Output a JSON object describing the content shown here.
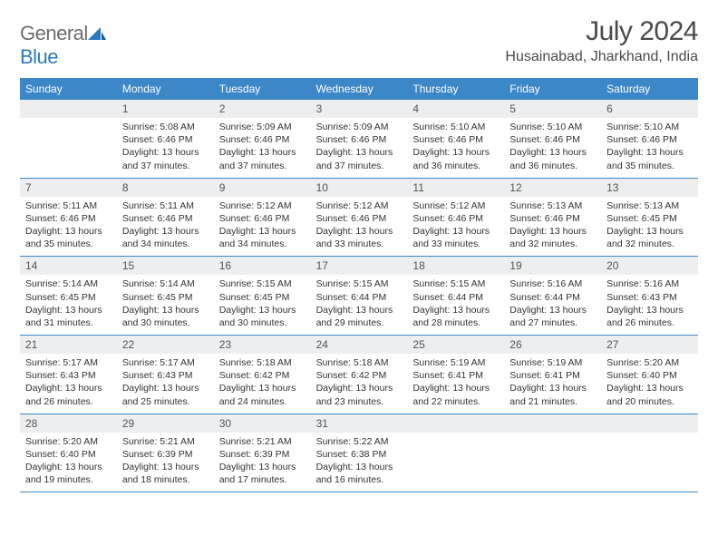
{
  "brand": {
    "name_a": "General",
    "name_b": "Blue"
  },
  "title": "July 2024",
  "location": "Husainabad, Jharkhand, India",
  "colors": {
    "header_bg": "#3b87c8",
    "header_fg": "#ffffff",
    "daynum_bg": "#eceeef",
    "text": "#333333",
    "border": "#3b87c8"
  },
  "day_headers": [
    "Sunday",
    "Monday",
    "Tuesday",
    "Wednesday",
    "Thursday",
    "Friday",
    "Saturday"
  ],
  "first_weekday": 1,
  "days": [
    {
      "n": 1,
      "sr": "5:08 AM",
      "ss": "6:46 PM",
      "dl": "13 hours and 37 minutes."
    },
    {
      "n": 2,
      "sr": "5:09 AM",
      "ss": "6:46 PM",
      "dl": "13 hours and 37 minutes."
    },
    {
      "n": 3,
      "sr": "5:09 AM",
      "ss": "6:46 PM",
      "dl": "13 hours and 37 minutes."
    },
    {
      "n": 4,
      "sr": "5:10 AM",
      "ss": "6:46 PM",
      "dl": "13 hours and 36 minutes."
    },
    {
      "n": 5,
      "sr": "5:10 AM",
      "ss": "6:46 PM",
      "dl": "13 hours and 36 minutes."
    },
    {
      "n": 6,
      "sr": "5:10 AM",
      "ss": "6:46 PM",
      "dl": "13 hours and 35 minutes."
    },
    {
      "n": 7,
      "sr": "5:11 AM",
      "ss": "6:46 PM",
      "dl": "13 hours and 35 minutes."
    },
    {
      "n": 8,
      "sr": "5:11 AM",
      "ss": "6:46 PM",
      "dl": "13 hours and 34 minutes."
    },
    {
      "n": 9,
      "sr": "5:12 AM",
      "ss": "6:46 PM",
      "dl": "13 hours and 34 minutes."
    },
    {
      "n": 10,
      "sr": "5:12 AM",
      "ss": "6:46 PM",
      "dl": "13 hours and 33 minutes."
    },
    {
      "n": 11,
      "sr": "5:12 AM",
      "ss": "6:46 PM",
      "dl": "13 hours and 33 minutes."
    },
    {
      "n": 12,
      "sr": "5:13 AM",
      "ss": "6:46 PM",
      "dl": "13 hours and 32 minutes."
    },
    {
      "n": 13,
      "sr": "5:13 AM",
      "ss": "6:45 PM",
      "dl": "13 hours and 32 minutes."
    },
    {
      "n": 14,
      "sr": "5:14 AM",
      "ss": "6:45 PM",
      "dl": "13 hours and 31 minutes."
    },
    {
      "n": 15,
      "sr": "5:14 AM",
      "ss": "6:45 PM",
      "dl": "13 hours and 30 minutes."
    },
    {
      "n": 16,
      "sr": "5:15 AM",
      "ss": "6:45 PM",
      "dl": "13 hours and 30 minutes."
    },
    {
      "n": 17,
      "sr": "5:15 AM",
      "ss": "6:44 PM",
      "dl": "13 hours and 29 minutes."
    },
    {
      "n": 18,
      "sr": "5:15 AM",
      "ss": "6:44 PM",
      "dl": "13 hours and 28 minutes."
    },
    {
      "n": 19,
      "sr": "5:16 AM",
      "ss": "6:44 PM",
      "dl": "13 hours and 27 minutes."
    },
    {
      "n": 20,
      "sr": "5:16 AM",
      "ss": "6:43 PM",
      "dl": "13 hours and 26 minutes."
    },
    {
      "n": 21,
      "sr": "5:17 AM",
      "ss": "6:43 PM",
      "dl": "13 hours and 26 minutes."
    },
    {
      "n": 22,
      "sr": "5:17 AM",
      "ss": "6:43 PM",
      "dl": "13 hours and 25 minutes."
    },
    {
      "n": 23,
      "sr": "5:18 AM",
      "ss": "6:42 PM",
      "dl": "13 hours and 24 minutes."
    },
    {
      "n": 24,
      "sr": "5:18 AM",
      "ss": "6:42 PM",
      "dl": "13 hours and 23 minutes."
    },
    {
      "n": 25,
      "sr": "5:19 AM",
      "ss": "6:41 PM",
      "dl": "13 hours and 22 minutes."
    },
    {
      "n": 26,
      "sr": "5:19 AM",
      "ss": "6:41 PM",
      "dl": "13 hours and 21 minutes."
    },
    {
      "n": 27,
      "sr": "5:20 AM",
      "ss": "6:40 PM",
      "dl": "13 hours and 20 minutes."
    },
    {
      "n": 28,
      "sr": "5:20 AM",
      "ss": "6:40 PM",
      "dl": "13 hours and 19 minutes."
    },
    {
      "n": 29,
      "sr": "5:21 AM",
      "ss": "6:39 PM",
      "dl": "13 hours and 18 minutes."
    },
    {
      "n": 30,
      "sr": "5:21 AM",
      "ss": "6:39 PM",
      "dl": "13 hours and 17 minutes."
    },
    {
      "n": 31,
      "sr": "5:22 AM",
      "ss": "6:38 PM",
      "dl": "13 hours and 16 minutes."
    }
  ],
  "labels": {
    "sunrise": "Sunrise: ",
    "sunset": "Sunset: ",
    "daylight": "Daylight: "
  }
}
